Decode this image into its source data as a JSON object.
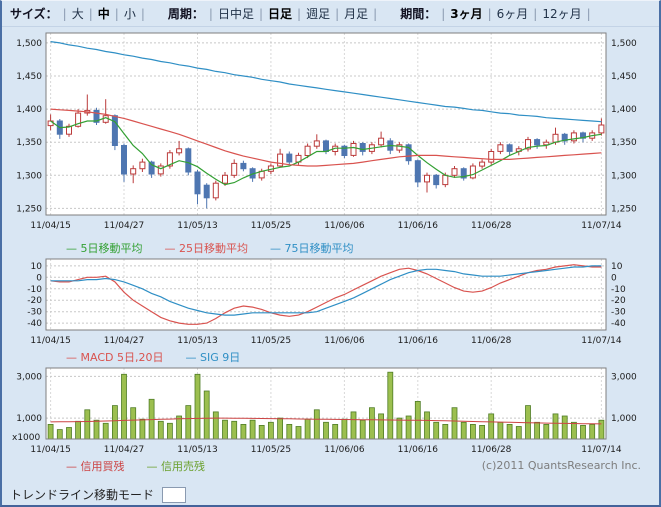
{
  "toolbar": {
    "size": {
      "label": "サイズ：",
      "options": [
        {
          "label": "大",
          "selected": false
        },
        {
          "label": "中",
          "selected": true
        },
        {
          "label": "小",
          "selected": false
        }
      ]
    },
    "period": {
      "label": "周期：",
      "options": [
        {
          "label": "日中足",
          "selected": false
        },
        {
          "label": "日足",
          "selected": true
        },
        {
          "label": "週足",
          "selected": false
        },
        {
          "label": "月足",
          "selected": false
        }
      ]
    },
    "range": {
      "label": "期間：",
      "options": [
        {
          "label": "3ヶ月",
          "selected": true
        },
        {
          "label": "6ヶ月",
          "selected": false
        },
        {
          "label": "12ヶ月",
          "selected": false
        }
      ]
    }
  },
  "legends": {
    "price": [
      {
        "label": "5日移動平均",
        "color": "#33a033"
      },
      {
        "label": "25日移動平均",
        "color": "#d9534f"
      },
      {
        "label": "75日移動平均",
        "color": "#2f8fc5"
      }
    ],
    "macd": [
      {
        "label": "MACD 5日,20日",
        "color": "#d9534f"
      },
      {
        "label": "SIG 9日",
        "color": "#2f8fc5"
      }
    ],
    "volume": [
      {
        "label": "信用買残",
        "color": "#cc4444"
      },
      {
        "label": "信用売残",
        "color": "#6aa02c"
      }
    ]
  },
  "copyright": "(c)2011 QuantsResearch Inc.",
  "bottom_control": {
    "label": "トレンドライン移動モード"
  },
  "chart_data": [
    {
      "type": "candlestick",
      "panel": "price",
      "n": 61,
      "x_tick_indices": [
        0,
        8,
        16,
        24,
        32,
        40,
        48,
        60
      ],
      "x_tick_labels": [
        "11/04/15",
        "11/04/27",
        "11/05/13",
        "11/05/25",
        "11/06/06",
        "11/06/16",
        "11/06/28",
        "11/07/14"
      ],
      "y_ticks": [
        1250,
        1300,
        1350,
        1400,
        1450,
        1500
      ],
      "ylim": [
        1240,
        1515
      ],
      "colors": {
        "up": "#bb3b3b",
        "down": "#4e76b1",
        "ma5": "#33a033",
        "ma25": "#d9534f",
        "ma75": "#2f8fc5"
      },
      "open": [
        1375,
        1382,
        1362,
        1374,
        1394,
        1398,
        1380,
        1390,
        1345,
        1302,
        1310,
        1320,
        1302,
        1314,
        1334,
        1340,
        1305,
        1285,
        1266,
        1288,
        1300,
        1318,
        1310,
        1296,
        1306,
        1314,
        1332,
        1320,
        1330,
        1344,
        1352,
        1336,
        1344,
        1330,
        1348,
        1336,
        1346,
        1352,
        1338,
        1346,
        1322,
        1290,
        1300,
        1286,
        1300,
        1310,
        1296,
        1314,
        1320,
        1336,
        1346,
        1336,
        1340,
        1354,
        1346,
        1350,
        1362,
        1352,
        1364,
        1356,
        1364
      ],
      "high": [
        1392,
        1385,
        1378,
        1400,
        1422,
        1402,
        1415,
        1392,
        1348,
        1315,
        1325,
        1322,
        1318,
        1338,
        1352,
        1342,
        1308,
        1288,
        1292,
        1305,
        1324,
        1322,
        1312,
        1310,
        1318,
        1340,
        1336,
        1334,
        1348,
        1362,
        1354,
        1348,
        1346,
        1352,
        1350,
        1350,
        1366,
        1356,
        1350,
        1348,
        1324,
        1304,
        1302,
        1304,
        1314,
        1312,
        1318,
        1324,
        1340,
        1350,
        1348,
        1344,
        1358,
        1356,
        1354,
        1372,
        1364,
        1368,
        1366,
        1368,
        1386
      ],
      "low": [
        1368,
        1355,
        1358,
        1372,
        1390,
        1376,
        1378,
        1338,
        1290,
        1288,
        1305,
        1296,
        1298,
        1310,
        1330,
        1300,
        1256,
        1250,
        1262,
        1284,
        1296,
        1306,
        1290,
        1292,
        1302,
        1312,
        1316,
        1316,
        1326,
        1340,
        1332,
        1330,
        1326,
        1328,
        1330,
        1332,
        1342,
        1332,
        1334,
        1316,
        1282,
        1274,
        1280,
        1282,
        1296,
        1292,
        1294,
        1310,
        1316,
        1332,
        1330,
        1330,
        1336,
        1340,
        1340,
        1346,
        1346,
        1348,
        1350,
        1352,
        1360
      ],
      "close": [
        1382,
        1362,
        1374,
        1394,
        1398,
        1380,
        1390,
        1345,
        1302,
        1310,
        1320,
        1302,
        1314,
        1334,
        1340,
        1305,
        1272,
        1266,
        1288,
        1300,
        1318,
        1310,
        1296,
        1306,
        1314,
        1332,
        1320,
        1330,
        1344,
        1352,
        1336,
        1344,
        1330,
        1348,
        1336,
        1346,
        1356,
        1338,
        1346,
        1322,
        1290,
        1300,
        1286,
        1300,
        1310,
        1296,
        1314,
        1320,
        1336,
        1346,
        1336,
        1340,
        1354,
        1346,
        1350,
        1362,
        1352,
        1364,
        1356,
        1364,
        1376
      ],
      "ma5": [
        1382,
        1372,
        1373,
        1378,
        1382,
        1382,
        1387,
        1381,
        1363,
        1345,
        1333,
        1316,
        1310,
        1316,
        1322,
        1319,
        1313,
        1303,
        1294,
        1286,
        1289,
        1296,
        1302,
        1306,
        1309,
        1312,
        1314,
        1320,
        1328,
        1336,
        1336,
        1341,
        1341,
        1342,
        1339,
        1341,
        1343,
        1345,
        1344,
        1342,
        1330,
        1319,
        1309,
        1300,
        1297,
        1298,
        1301,
        1308,
        1315,
        1322,
        1330,
        1336,
        1342,
        1344,
        1345,
        1350,
        1353,
        1355,
        1357,
        1360,
        1362
      ],
      "ma25": [
        1400,
        1399,
        1398,
        1397,
        1396,
        1394,
        1392,
        1389,
        1386,
        1382,
        1378,
        1374,
        1370,
        1366,
        1362,
        1357,
        1352,
        1347,
        1342,
        1337,
        1333,
        1329,
        1326,
        1323,
        1320,
        1318,
        1316,
        1315,
        1314,
        1314,
        1315,
        1316,
        1317,
        1318,
        1320,
        1322,
        1324,
        1326,
        1328,
        1329,
        1330,
        1330,
        1330,
        1329,
        1328,
        1327,
        1326,
        1325,
        1324,
        1324,
        1324,
        1325,
        1326,
        1327,
        1328,
        1329,
        1330,
        1331,
        1332,
        1333,
        1334
      ],
      "ma75": [
        1502,
        1500,
        1497,
        1495,
        1492,
        1490,
        1487,
        1485,
        1482,
        1480,
        1477,
        1475,
        1472,
        1470,
        1467,
        1465,
        1462,
        1460,
        1457,
        1455,
        1452,
        1450,
        1448,
        1445,
        1443,
        1441,
        1438,
        1436,
        1434,
        1432,
        1430,
        1428,
        1426,
        1424,
        1422,
        1420,
        1418,
        1416,
        1414,
        1412,
        1410,
        1408,
        1406,
        1404,
        1403,
        1401,
        1399,
        1398,
        1396,
        1394,
        1393,
        1391,
        1390,
        1389,
        1387,
        1386,
        1385,
        1384,
        1383,
        1382,
        1381
      ]
    },
    {
      "type": "line",
      "panel": "macd",
      "x_tick_indices": [
        0,
        8,
        16,
        24,
        32,
        40,
        48,
        60
      ],
      "x_tick_labels": [
        "11/04/15",
        "11/04/27",
        "11/05/13",
        "11/05/25",
        "11/06/06",
        "11/06/16",
        "11/06/28",
        "11/07/14"
      ],
      "y_ticks": [
        10,
        0,
        -10,
        -20,
        -30,
        -40
      ],
      "ylim": [
        -46,
        16
      ],
      "series": [
        {
          "name": "MACD 5日,20日",
          "color": "#d9534f",
          "values": [
            -3,
            -4,
            -4,
            -2,
            0,
            0,
            1,
            -4,
            -13,
            -20,
            -25,
            -30,
            -35,
            -38,
            -40,
            -41,
            -41,
            -40,
            -36,
            -31,
            -27,
            -25,
            -26,
            -28,
            -31,
            -33,
            -34,
            -33,
            -30,
            -26,
            -22,
            -18,
            -15,
            -11,
            -7,
            -3,
            1,
            4,
            7,
            8,
            6,
            3,
            -1,
            -5,
            -9,
            -12,
            -13,
            -12,
            -9,
            -5,
            -2,
            1,
            4,
            6,
            7,
            9,
            10,
            11,
            10,
            9,
            9
          ]
        },
        {
          "name": "SIG 9日",
          "color": "#2f8fc5",
          "values": [
            -3,
            -3,
            -3,
            -3,
            -2,
            -2,
            -1,
            -2,
            -4,
            -7,
            -10,
            -14,
            -17,
            -21,
            -24,
            -27,
            -29,
            -31,
            -32,
            -33,
            -33,
            -32,
            -31,
            -31,
            -31,
            -31,
            -31,
            -31,
            -31,
            -30,
            -27,
            -24,
            -21,
            -18,
            -14,
            -10,
            -6,
            -2,
            1,
            4,
            6,
            7,
            7,
            6,
            5,
            3,
            2,
            1,
            1,
            1,
            2,
            3,
            4,
            5,
            6,
            7,
            8,
            9,
            9,
            10,
            10
          ]
        }
      ]
    },
    {
      "type": "bar",
      "panel": "volume",
      "unit": "x1000",
      "x_tick_indices": [
        0,
        8,
        16,
        24,
        32,
        40,
        48,
        60
      ],
      "x_tick_labels": [
        "11/04/15",
        "11/04/27",
        "11/05/13",
        "11/05/25",
        "11/06/06",
        "11/06/16",
        "11/06/28",
        "11/07/14"
      ],
      "y_ticks": [
        1000,
        3000
      ],
      "ylim": [
        0,
        3400
      ],
      "bars": {
        "name": "信用売残",
        "fill": "#9cbf4f",
        "stroke": "#4f7d26",
        "values": [
          700,
          450,
          550,
          850,
          1400,
          900,
          750,
          1600,
          3100,
          1500,
          950,
          1900,
          850,
          750,
          1100,
          1600,
          3100,
          2300,
          1300,
          900,
          850,
          700,
          900,
          650,
          800,
          1000,
          700,
          600,
          950,
          1400,
          800,
          700,
          950,
          1300,
          900,
          1500,
          1200,
          3200,
          1000,
          1100,
          1800,
          1300,
          800,
          700,
          1500,
          800,
          700,
          650,
          1200,
          800,
          700,
          600,
          1600,
          800,
          700,
          1200,
          1100,
          800,
          650,
          700,
          900
        ]
      },
      "line": {
        "name": "信用買残",
        "color": "#cc4444",
        "values": [
          820,
          825,
          830,
          835,
          840,
          850,
          860,
          870,
          890,
          905,
          915,
          930,
          945,
          955,
          965,
          975,
          985,
          995,
          1000,
          1000,
          995,
          990,
          985,
          980,
          975,
          970,
          965,
          960,
          955,
          950,
          945,
          940,
          935,
          930,
          925,
          920,
          915,
          910,
          905,
          900,
          895,
          890,
          880,
          870,
          860,
          850,
          840,
          830,
          820,
          810,
          800,
          790,
          780,
          770,
          760,
          750,
          745,
          740,
          735,
          730,
          725
        ]
      }
    }
  ]
}
